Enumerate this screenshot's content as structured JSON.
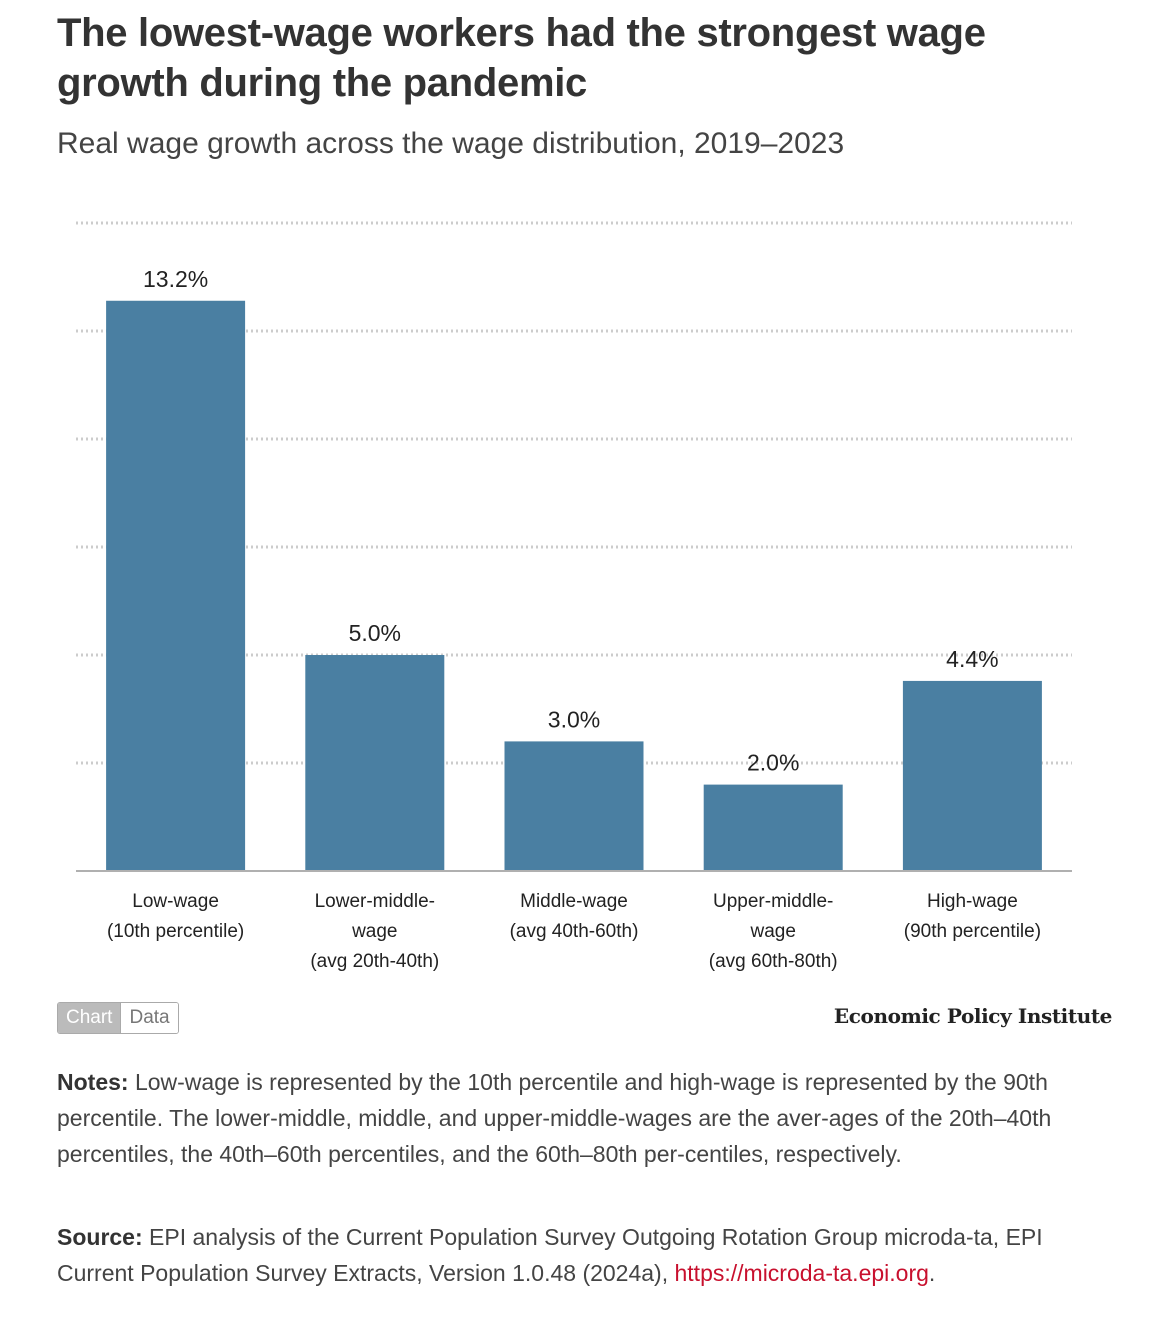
{
  "header": {
    "title": "The lowest-wage workers had the strongest wage growth during the pandemic",
    "subtitle": "Real wage growth across the wage distribution, 2019–2023"
  },
  "chart_data": {
    "type": "bar",
    "title": "The lowest-wage workers had the strongest wage growth during the pandemic",
    "subtitle": "Real wage growth across the wage distribution, 2019–2023",
    "categories": [
      [
        "Low-wage",
        "(10th percentile)"
      ],
      [
        "Lower-middle-",
        "wage",
        "(avg 20th-40th)"
      ],
      [
        "Middle-wage",
        "(avg 40th-60th)"
      ],
      [
        "Upper-middle-",
        "wage",
        "(avg 60th-80th)"
      ],
      [
        "High-wage",
        "(90th percentile)"
      ]
    ],
    "values": [
      13.2,
      5.0,
      3.0,
      2.0,
      4.4
    ],
    "value_labels": [
      "13.2%",
      "5.0%",
      "3.0%",
      "2.0%",
      "4.4%"
    ],
    "ylim": [
      0,
      15
    ],
    "gridlines": [
      2.5,
      5,
      7.5,
      10,
      12.5,
      15
    ],
    "xlabel": "",
    "ylabel": "",
    "bar_color": "#4a7fa2",
    "grid": true
  },
  "toggle": {
    "chart_label": "Chart",
    "data_label": "Data"
  },
  "brand": "Economic Policy Institute",
  "notes": {
    "label": "Notes:",
    "text": "Low-wage is represented by the 10th percentile and high-wage is represented by the 90th percentile. The lower-middle, middle, and upper-middle-wages are the aver-ages of the 20th–40th percentiles, the 40th–60th percentiles, and the 60th–80th per-centiles, respectively."
  },
  "source": {
    "label": "Source:",
    "text": "EPI analysis of the Current Population Survey Outgoing Rotation Group microda-ta, EPI Current Population Survey Extracts, Version 1.0.48 (2024a),",
    "link_text": "https://microda-ta.epi.org",
    "trailing": "."
  },
  "colors": {
    "accent_link": "#c8102e",
    "bar": "#4a7fa2",
    "grid": "#cccccc"
  }
}
